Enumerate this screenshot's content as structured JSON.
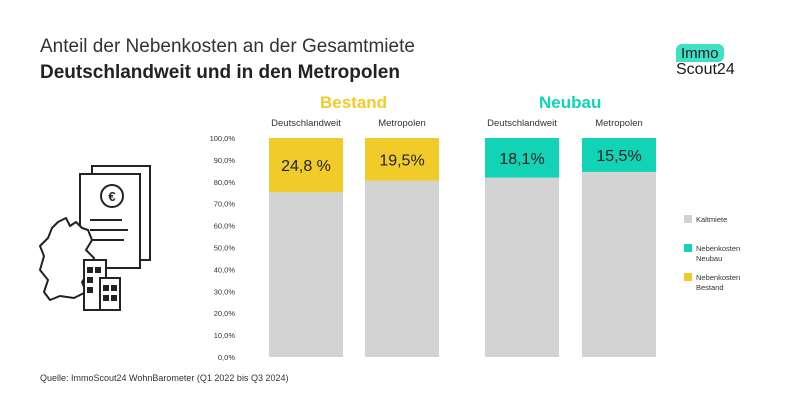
{
  "header": {
    "title": "Anteil der Nebenkosten an der Gesamtmiete",
    "subtitle": "Deutschlandweit und in den Metropolen",
    "logo_top": "Immo",
    "logo_bottom": "Scout24"
  },
  "source": "Quelle: ImmoScout24 WohnBarometer (Q1 2022 bis Q3 2024)",
  "colors": {
    "kaltmiete": "#d3d3d3",
    "nebenkosten_neubau": "#12d3b5",
    "nebenkosten_bestand": "#f0cb2a",
    "text": "#333333"
  },
  "icons": [
    "document-euro-icon",
    "germany-map-icon",
    "buildings-icon"
  ],
  "chart_data": {
    "type": "bar",
    "stacked": true,
    "groups": [
      {
        "label": "Bestand",
        "color": "#f0cb2a"
      },
      {
        "label": "Neubau",
        "color": "#12d3b5"
      }
    ],
    "categories": [
      "Deutschlandweit",
      "Metropolen",
      "Deutschlandweit",
      "Metropolen"
    ],
    "category_group": [
      0,
      0,
      1,
      1
    ],
    "series": [
      {
        "name": "Kaltmiete",
        "values": [
          75.2,
          80.5,
          81.9,
          84.5
        ]
      },
      {
        "name": "Nebenkosten Neubau",
        "values": [
          0,
          0,
          18.1,
          15.5
        ]
      },
      {
        "name": "Nebenkosten Bestand",
        "values": [
          24.8,
          19.5,
          0,
          0
        ]
      }
    ],
    "data_labels": [
      "24,8 %",
      "19,5%",
      "18,1%",
      "15,5%"
    ],
    "legend": [
      "Kaltmiete",
      "Nebenkosten Neubau",
      "Nebenkosten Bestand"
    ],
    "legend_position": "right",
    "y_ticks": [
      "0,0%",
      "10,0%",
      "20,0%",
      "30,0%",
      "40,0%",
      "50,0%",
      "60,0%",
      "70,0%",
      "80,0%",
      "90,0%",
      "100,0%"
    ],
    "ylim": [
      0,
      100
    ],
    "grid": false
  }
}
